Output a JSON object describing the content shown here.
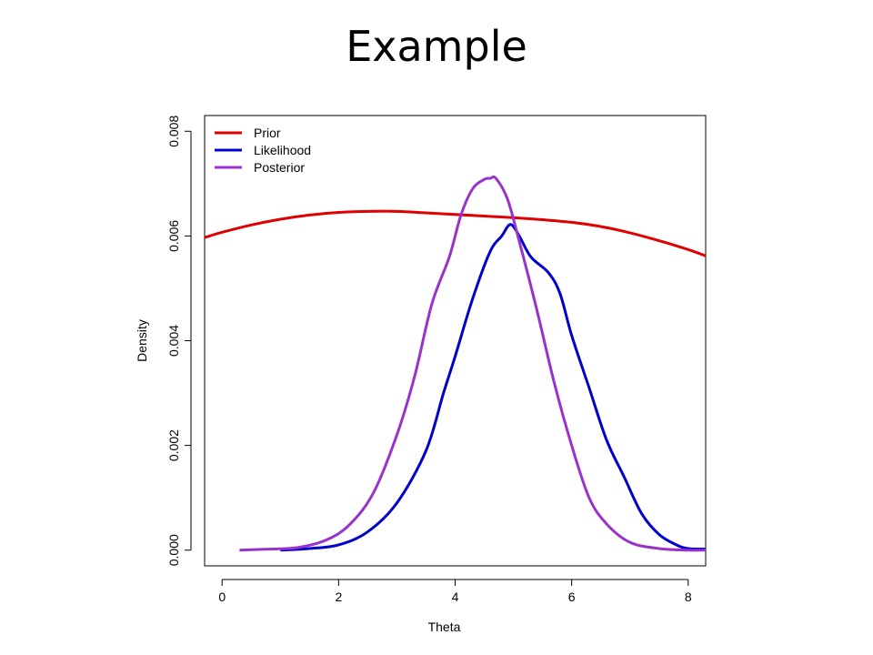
{
  "slide": {
    "title": "Example"
  },
  "chart_data": {
    "type": "line",
    "title": "",
    "xlabel": "Theta",
    "ylabel": "Density",
    "xlim": [
      -0.3,
      8.3
    ],
    "ylim": [
      -0.0003,
      0.0083
    ],
    "xticks": [
      0,
      2,
      4,
      6,
      8
    ],
    "yticks": [
      0.0,
      0.002,
      0.004,
      0.006,
      0.008
    ],
    "ytick_labels": [
      "0.000",
      "0.002",
      "0.004",
      "0.006",
      "0.008"
    ],
    "grid": false,
    "legend_position": "top-left",
    "series": [
      {
        "name": "Prior",
        "color": "#e00000",
        "x": [
          -0.3,
          0.0,
          0.5,
          1.0,
          1.5,
          2.0,
          2.5,
          3.0,
          3.5,
          4.0,
          4.5,
          5.0,
          5.5,
          6.0,
          6.5,
          7.0,
          7.5,
          8.0,
          8.3
        ],
        "y": [
          0.00597,
          0.00607,
          0.00621,
          0.00632,
          0.0064,
          0.00645,
          0.00647,
          0.00647,
          0.00644,
          0.00641,
          0.00638,
          0.00635,
          0.00631,
          0.00626,
          0.00618,
          0.00606,
          0.00591,
          0.00574,
          0.00562
        ]
      },
      {
        "name": "Likelihood",
        "color": "#0000cc",
        "x": [
          1.0,
          1.5,
          2.0,
          2.5,
          3.0,
          3.5,
          3.8,
          4.0,
          4.3,
          4.6,
          4.8,
          4.95,
          5.1,
          5.3,
          5.6,
          5.8,
          6.0,
          6.3,
          6.6,
          6.9,
          7.2,
          7.5,
          7.8,
          8.0,
          8.3
        ],
        "y": [
          0.0,
          3e-05,
          0.0001,
          0.00035,
          0.0009,
          0.0019,
          0.003,
          0.0037,
          0.0048,
          0.0057,
          0.006,
          0.00622,
          0.006,
          0.0056,
          0.0053,
          0.0049,
          0.0041,
          0.0031,
          0.0021,
          0.0014,
          0.0007,
          0.0003,
          0.0001,
          3e-05,
          2e-05
        ]
      },
      {
        "name": "Posterior",
        "color": "#9932cc",
        "x": [
          0.3,
          0.8,
          1.3,
          1.8,
          2.2,
          2.6,
          3.0,
          3.3,
          3.6,
          3.9,
          4.1,
          4.3,
          4.5,
          4.6,
          4.7,
          4.9,
          5.1,
          5.4,
          5.7,
          6.0,
          6.3,
          6.6,
          7.0,
          7.5,
          8.0,
          8.3
        ],
        "y": [
          0.0,
          2e-05,
          5e-05,
          0.0002,
          0.0005,
          0.0011,
          0.0022,
          0.0033,
          0.0047,
          0.0056,
          0.0064,
          0.0069,
          0.00708,
          0.0071,
          0.0071,
          0.0067,
          0.0059,
          0.0046,
          0.0032,
          0.002,
          0.001,
          0.0005,
          0.00015,
          3e-05,
          0.0,
          0.0
        ]
      }
    ]
  }
}
